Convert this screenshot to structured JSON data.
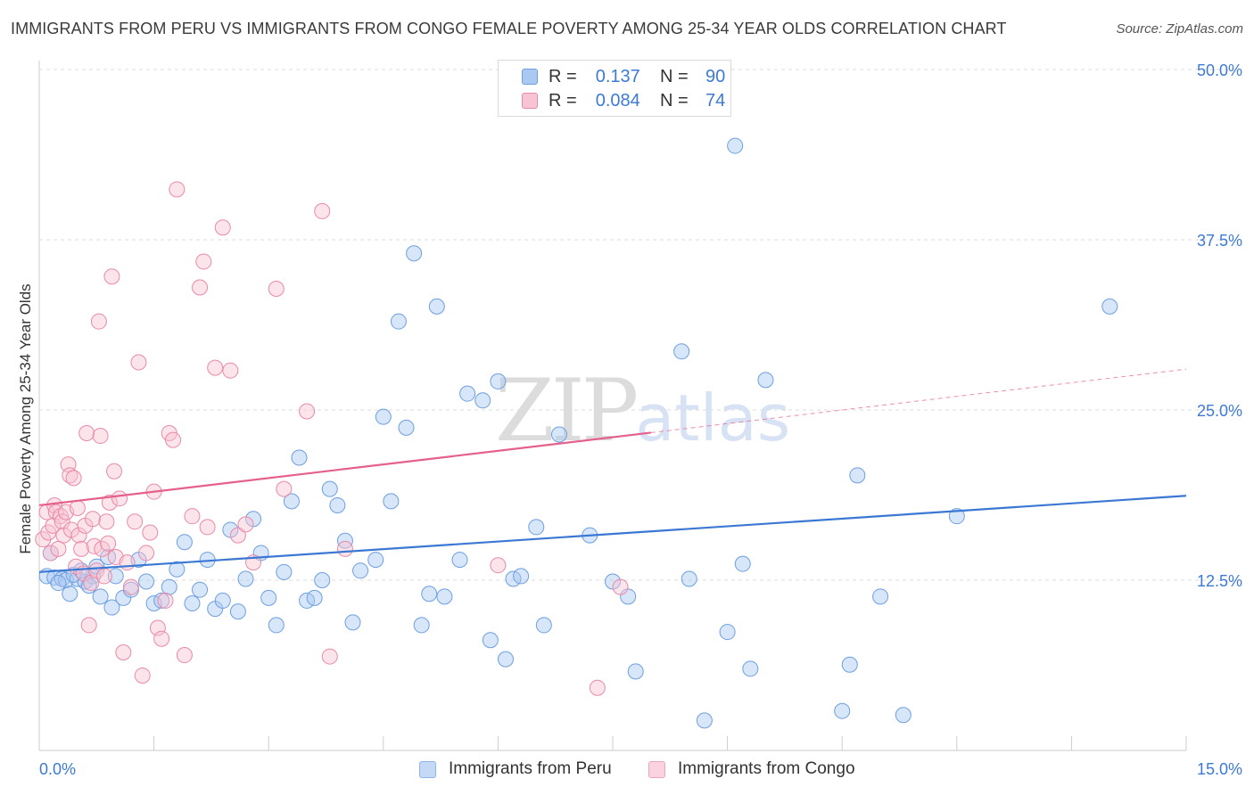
{
  "header": {
    "title": "IMMIGRANTS FROM PERU VS IMMIGRANTS FROM CONGO FEMALE POVERTY AMONG 25-34 YEAR OLDS CORRELATION CHART",
    "source": "Source: ZipAtlas.com"
  },
  "watermark": {
    "zip": "ZIP",
    "atlas": "atlas"
  },
  "legend": {
    "rows": [
      {
        "r_label": "R =",
        "r_value": "0.137",
        "n_label": "N =",
        "n_value": "90",
        "color": "#a9c8f2",
        "border": "#6d9fe0"
      },
      {
        "r_label": "R =",
        "r_value": "0.084",
        "n_label": "N =",
        "n_value": "74",
        "color": "#f8c4d3",
        "border": "#e98aa8"
      }
    ]
  },
  "bottom_legend": {
    "peru": "Immigrants from Peru",
    "congo": "Immigrants from Congo"
  },
  "chart_data": {
    "type": "scatter",
    "xlabel": "",
    "ylabel": "Female Poverty Among 25-34 Year Olds",
    "xlim": [
      0,
      15
    ],
    "ylim": [
      0,
      50
    ],
    "x_tick_labels": [
      "0.0%",
      "15.0%"
    ],
    "y_ticks": [
      12.5,
      25.0,
      37.5,
      50.0
    ],
    "y_tick_labels": [
      "12.5%",
      "25.0%",
      "37.5%",
      "50.0%"
    ],
    "grid": "horizontal dashed",
    "colors": {
      "peru": "#3b78d4",
      "congo": "#e5608a",
      "peru_fill": "#a9c8f2",
      "congo_fill": "#f8c4d3"
    },
    "series": [
      {
        "name": "Immigrants from Peru",
        "trend": {
          "x": [
            0,
            15
          ],
          "y": [
            13.1,
            18.7
          ],
          "solid_to": 15
        },
        "points": [
          [
            0.1,
            12.8
          ],
          [
            0.2,
            12.7
          ],
          [
            0.3,
            12.6
          ],
          [
            0.35,
            12.5
          ],
          [
            0.4,
            11.5
          ],
          [
            0.5,
            12.6
          ],
          [
            0.6,
            12.4
          ],
          [
            0.7,
            12.8
          ],
          [
            0.8,
            11.3
          ],
          [
            0.9,
            14.2
          ],
          [
            0.95,
            10.5
          ],
          [
            1.0,
            12.8
          ],
          [
            1.1,
            11.2
          ],
          [
            1.2,
            11.8
          ],
          [
            1.3,
            14.0
          ],
          [
            1.4,
            12.4
          ],
          [
            1.5,
            10.8
          ],
          [
            1.6,
            11.0
          ],
          [
            1.7,
            12.0
          ],
          [
            1.8,
            13.3
          ],
          [
            1.9,
            15.3
          ],
          [
            2.0,
            10.8
          ],
          [
            2.1,
            11.8
          ],
          [
            2.2,
            14.0
          ],
          [
            2.3,
            10.4
          ],
          [
            2.4,
            11.0
          ],
          [
            2.5,
            16.2
          ],
          [
            2.6,
            10.2
          ],
          [
            2.7,
            12.6
          ],
          [
            2.8,
            17.0
          ],
          [
            2.9,
            14.5
          ],
          [
            3.0,
            11.2
          ],
          [
            3.1,
            9.2
          ],
          [
            3.2,
            13.1
          ],
          [
            3.3,
            18.3
          ],
          [
            3.4,
            21.5
          ],
          [
            3.5,
            11.0
          ],
          [
            3.6,
            11.2
          ],
          [
            3.7,
            12.5
          ],
          [
            3.8,
            19.2
          ],
          [
            3.9,
            18.0
          ],
          [
            4.0,
            15.4
          ],
          [
            4.1,
            9.4
          ],
          [
            4.2,
            13.2
          ],
          [
            4.4,
            14.0
          ],
          [
            4.5,
            24.5
          ],
          [
            4.6,
            18.3
          ],
          [
            4.7,
            31.5
          ],
          [
            4.8,
            23.7
          ],
          [
            4.9,
            36.5
          ],
          [
            5.0,
            9.2
          ],
          [
            5.1,
            11.5
          ],
          [
            5.2,
            32.6
          ],
          [
            5.3,
            11.3
          ],
          [
            5.5,
            14.0
          ],
          [
            5.6,
            26.2
          ],
          [
            5.8,
            25.7
          ],
          [
            5.9,
            8.1
          ],
          [
            6.0,
            27.1
          ],
          [
            6.1,
            6.7
          ],
          [
            6.2,
            12.6
          ],
          [
            6.3,
            12.8
          ],
          [
            6.5,
            16.4
          ],
          [
            6.6,
            9.2
          ],
          [
            6.8,
            23.2
          ],
          [
            7.2,
            15.8
          ],
          [
            7.5,
            12.4
          ],
          [
            7.7,
            11.3
          ],
          [
            7.8,
            5.8
          ],
          [
            8.4,
            29.3
          ],
          [
            8.5,
            12.6
          ],
          [
            8.7,
            2.2
          ],
          [
            9.0,
            8.7
          ],
          [
            9.1,
            44.4
          ],
          [
            9.2,
            13.7
          ],
          [
            9.3,
            6.0
          ],
          [
            9.5,
            27.2
          ],
          [
            10.5,
            2.9
          ],
          [
            10.6,
            6.3
          ],
          [
            10.7,
            20.2
          ],
          [
            11.0,
            11.3
          ],
          [
            11.3,
            2.6
          ],
          [
            12.0,
            17.2
          ],
          [
            14.0,
            32.6
          ],
          [
            0.15,
            14.5
          ],
          [
            0.25,
            12.3
          ],
          [
            0.45,
            12.9
          ],
          [
            0.55,
            13.2
          ],
          [
            0.65,
            12.1
          ],
          [
            0.75,
            13.5
          ]
        ]
      },
      {
        "name": "Immigrants from Congo",
        "trend": {
          "x": [
            0,
            15
          ],
          "y": [
            18.0,
            28.0
          ],
          "solid_to": 8
        },
        "points": [
          [
            0.05,
            15.5
          ],
          [
            0.1,
            17.5
          ],
          [
            0.12,
            16.0
          ],
          [
            0.15,
            14.5
          ],
          [
            0.18,
            16.5
          ],
          [
            0.2,
            18.0
          ],
          [
            0.22,
            17.5
          ],
          [
            0.25,
            14.8
          ],
          [
            0.28,
            17.2
          ],
          [
            0.3,
            16.8
          ],
          [
            0.32,
            15.8
          ],
          [
            0.35,
            17.5
          ],
          [
            0.38,
            21.0
          ],
          [
            0.4,
            20.2
          ],
          [
            0.42,
            16.2
          ],
          [
            0.45,
            20.0
          ],
          [
            0.48,
            13.5
          ],
          [
            0.5,
            17.8
          ],
          [
            0.52,
            15.8
          ],
          [
            0.55,
            14.8
          ],
          [
            0.58,
            13.0
          ],
          [
            0.6,
            16.5
          ],
          [
            0.62,
            23.3
          ],
          [
            0.65,
            9.2
          ],
          [
            0.68,
            12.3
          ],
          [
            0.7,
            17.0
          ],
          [
            0.72,
            15.0
          ],
          [
            0.75,
            13.2
          ],
          [
            0.78,
            31.5
          ],
          [
            0.8,
            23.1
          ],
          [
            0.82,
            14.8
          ],
          [
            0.85,
            12.8
          ],
          [
            0.88,
            16.8
          ],
          [
            0.9,
            15.2
          ],
          [
            0.92,
            18.2
          ],
          [
            0.95,
            34.8
          ],
          [
            0.98,
            20.5
          ],
          [
            1.0,
            14.2
          ],
          [
            1.05,
            18.5
          ],
          [
            1.1,
            7.2
          ],
          [
            1.15,
            13.8
          ],
          [
            1.2,
            12.0
          ],
          [
            1.25,
            16.8
          ],
          [
            1.3,
            28.5
          ],
          [
            1.35,
            5.5
          ],
          [
            1.4,
            14.5
          ],
          [
            1.45,
            16.0
          ],
          [
            1.5,
            19.0
          ],
          [
            1.55,
            9.0
          ],
          [
            1.6,
            8.2
          ],
          [
            1.65,
            11.0
          ],
          [
            1.7,
            23.3
          ],
          [
            1.75,
            22.8
          ],
          [
            1.8,
            41.2
          ],
          [
            1.9,
            7.0
          ],
          [
            2.0,
            17.2
          ],
          [
            2.1,
            34.0
          ],
          [
            2.15,
            35.9
          ],
          [
            2.2,
            16.4
          ],
          [
            2.3,
            28.1
          ],
          [
            2.4,
            38.4
          ],
          [
            2.5,
            27.9
          ],
          [
            2.6,
            15.8
          ],
          [
            2.7,
            16.6
          ],
          [
            2.8,
            13.8
          ],
          [
            3.1,
            33.9
          ],
          [
            3.2,
            19.2
          ],
          [
            3.5,
            24.9
          ],
          [
            3.7,
            39.6
          ],
          [
            3.8,
            6.9
          ],
          [
            4.0,
            14.8
          ],
          [
            6.0,
            13.6
          ],
          [
            7.3,
            4.6
          ],
          [
            7.6,
            12.0
          ]
        ]
      }
    ]
  }
}
